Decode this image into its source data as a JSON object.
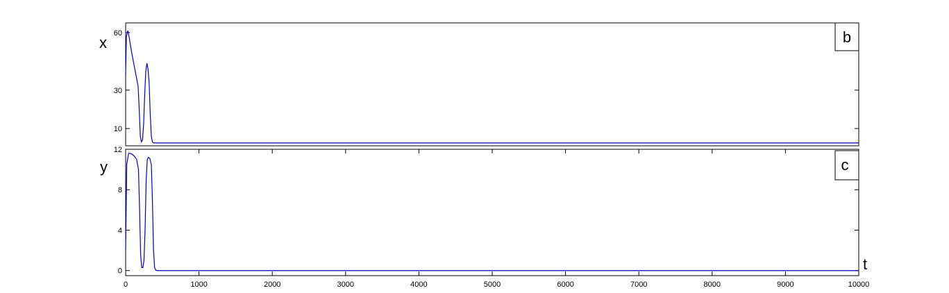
{
  "chart_data": [
    {
      "type": "line",
      "panel_label": "b",
      "ylabel": "x",
      "xlabel": "",
      "xlim": [
        0,
        10000
      ],
      "ylim": [
        1,
        65
      ],
      "yticks": [
        10,
        30,
        60
      ],
      "line_color": "#0000cc",
      "series": [
        {
          "x": [
            0,
            10,
            30,
            50,
            80,
            110,
            140,
            170,
            185,
            200,
            215,
            230,
            245,
            260,
            275,
            290,
            305,
            320,
            335,
            350,
            365,
            380,
            420,
            600,
            10000
          ],
          "y": [
            38,
            58,
            61,
            57,
            50,
            44,
            38,
            32,
            20,
            6,
            3,
            4,
            12,
            28,
            40,
            44,
            41,
            34,
            18,
            6,
            3,
            2.5,
            2.5,
            2.5,
            2.5
          ]
        }
      ]
    },
    {
      "type": "line",
      "panel_label": "c",
      "ylabel": "y",
      "xlabel": "t",
      "xlim": [
        0,
        10000
      ],
      "ylim": [
        -0.5,
        12
      ],
      "yticks": [
        0,
        4,
        8,
        12
      ],
      "xticks": [
        0,
        1000,
        2000,
        3000,
        4000,
        5000,
        6000,
        7000,
        8000,
        9000,
        10000
      ],
      "line_color": "#0000cc",
      "series": [
        {
          "x": [
            0,
            15,
            40,
            60,
            90,
            120,
            150,
            175,
            190,
            205,
            220,
            235,
            250,
            265,
            280,
            295,
            310,
            330,
            350,
            365,
            380,
            395,
            410,
            430,
            600,
            10000
          ],
          "y": [
            2,
            10.5,
            11.6,
            11.6,
            11.5,
            11.3,
            11,
            10,
            6,
            1.5,
            0.3,
            0.3,
            1,
            4,
            9,
            11,
            11.2,
            11.1,
            10.5,
            7,
            2,
            0.3,
            0.05,
            0,
            0,
            0
          ]
        }
      ]
    }
  ]
}
